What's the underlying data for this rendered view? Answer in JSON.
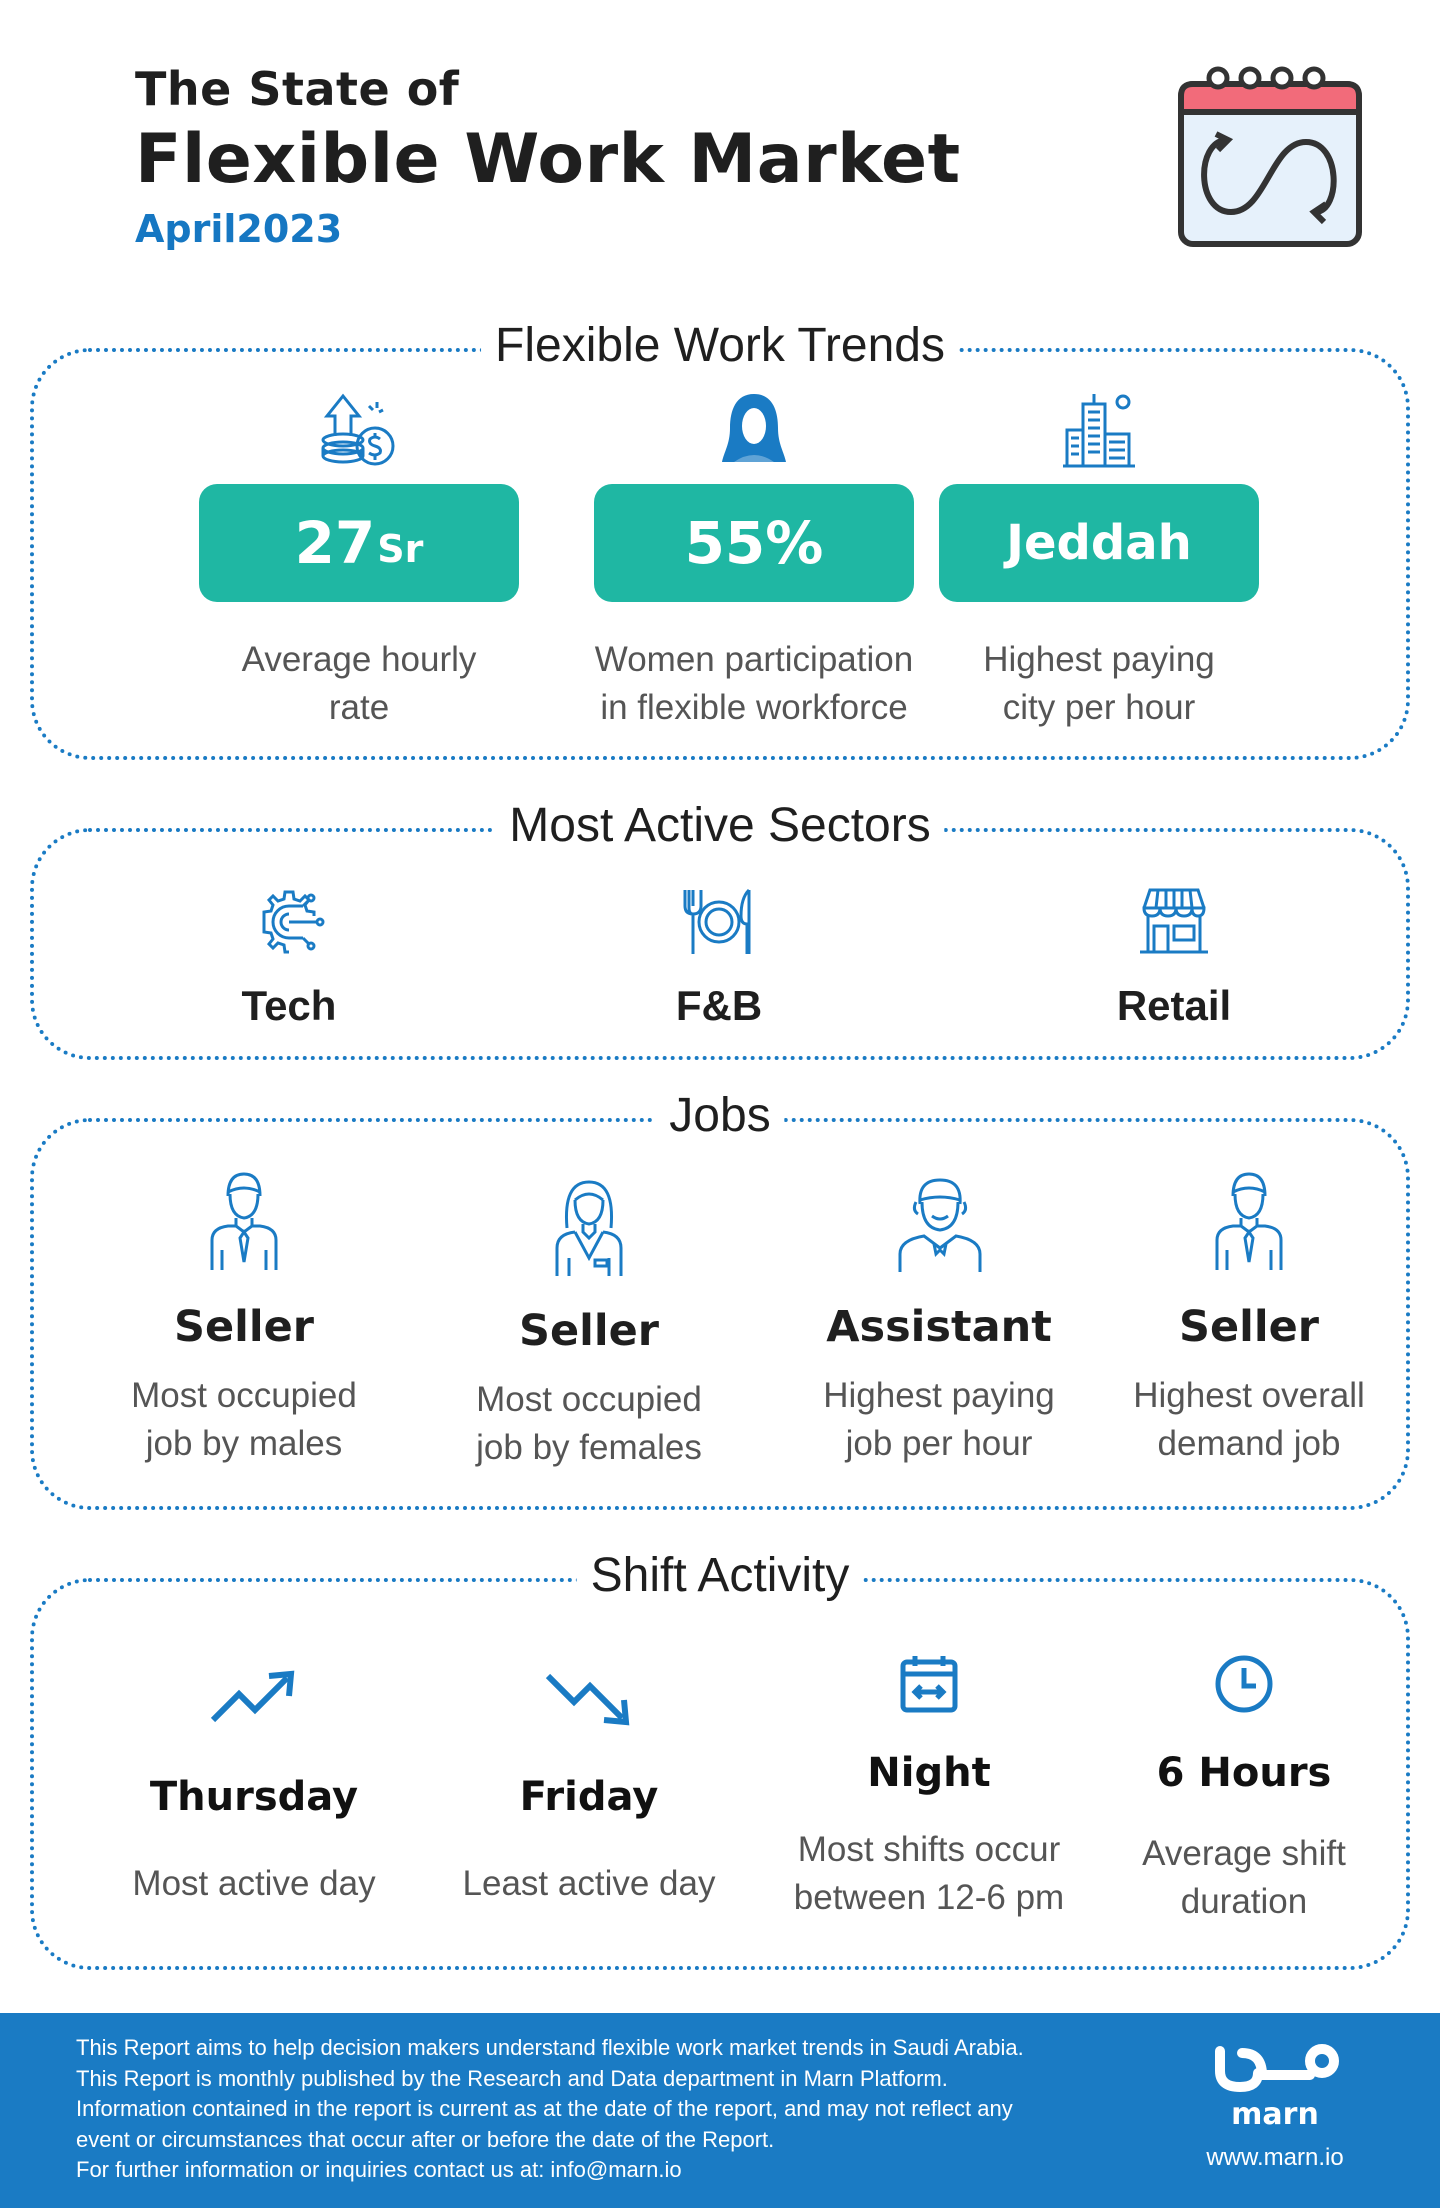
{
  "header": {
    "pretitle": "The State of",
    "title": "Flexible Work Market",
    "date": "April2023"
  },
  "trends": {
    "title": "Flexible Work Trends",
    "items": [
      {
        "value": "27",
        "unit": "Sr",
        "desc1": "Average hourly",
        "desc2": "rate",
        "icon": "money-growth-icon"
      },
      {
        "value": "55%",
        "unit": "",
        "desc1": "Women participation",
        "desc2": "in flexible workforce",
        "icon": "hijab-woman-icon"
      },
      {
        "value": "Jeddah",
        "unit": "",
        "desc1": "Highest paying",
        "desc2": "city per hour",
        "icon": "city-buildings-icon"
      }
    ]
  },
  "sectors": {
    "title": "Most Active Sectors",
    "items": [
      {
        "label": "Tech",
        "icon": "tech-gear-icon"
      },
      {
        "label": "F&B",
        "icon": "plate-cutlery-icon"
      },
      {
        "label": "Retail",
        "icon": "store-icon"
      }
    ]
  },
  "jobs": {
    "title": "Jobs",
    "items": [
      {
        "title": "Seller",
        "desc1": "Most occupied",
        "desc2": "job by males",
        "icon": "male-worker-icon"
      },
      {
        "title": "Seller",
        "desc1": "Most occupied",
        "desc2": "job by females",
        "icon": "female-worker-icon"
      },
      {
        "title": "Assistant",
        "desc1": "Highest paying",
        "desc2": "job per hour",
        "icon": "assistant-icon"
      },
      {
        "title": "Seller",
        "desc1": "Highest overall",
        "desc2": "demand job",
        "icon": "male-worker-icon"
      }
    ]
  },
  "shifts": {
    "title": "Shift Activity",
    "items": [
      {
        "title": "Thursday",
        "desc1": "Most active day",
        "desc2": "",
        "icon": "trend-up-icon"
      },
      {
        "title": "Friday",
        "desc1": "Least active day",
        "desc2": "",
        "icon": "trend-down-icon"
      },
      {
        "title": "Night",
        "desc1": "Most shifts occur",
        "desc2": "between 12-6 pm",
        "icon": "calendar-range-icon"
      },
      {
        "title": "6 Hours",
        "desc1": "Average shift",
        "desc2": "duration",
        "icon": "clock-icon"
      }
    ]
  },
  "footer": {
    "lines": [
      "This Report aims to help decision makers understand flexible work market trends in Saudi Arabia.",
      "This Report is monthly published by the Research and Data department in Marn Platform.",
      "Information contained in the report is current as at the date of the report, and may not reflect any",
      "event or circumstances that occur after or before the date of the Report.",
      "For further information or inquiries contact us at: info@marn.io"
    ],
    "logo_word": "marn",
    "url": "www.marn.io"
  },
  "colors": {
    "accent_blue": "#1a7bc4",
    "pill_teal": "#1fb7a3",
    "date_blue": "#1677c2"
  }
}
